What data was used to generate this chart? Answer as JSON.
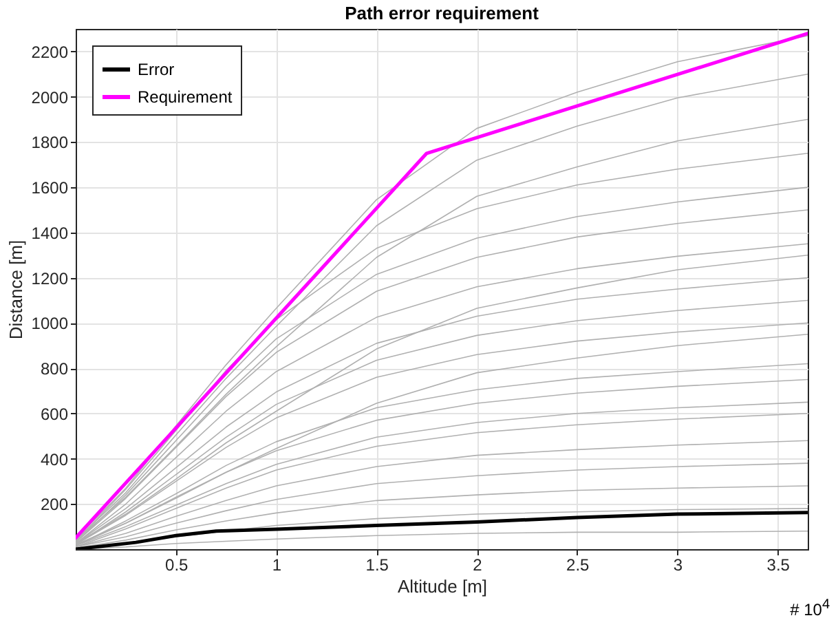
{
  "chart_data": {
    "type": "line",
    "title": "Path error requirement",
    "xlabel": "Altitude [m]",
    "ylabel": "Distance [m]",
    "annotations": [
      "# 10$^{4}$"
    ],
    "x": [
      0,
      0.25,
      0.5,
      0.75,
      1,
      1.5,
      2,
      2.5,
      3,
      3.65
    ],
    "xlim": [
      0,
      3.65
    ],
    "ylim": [
      0,
      2300
    ],
    "xticks": [
      0.5,
      1,
      1.5,
      2,
      2.5,
      3,
      3.5
    ],
    "yticks": [
      200,
      400,
      600,
      800,
      1000,
      1200,
      1400,
      1600,
      1800,
      2000,
      2200
    ],
    "grid": true,
    "legend": "top left",
    "line_style": "solid",
    "marker": "none",
    "series": [
      {
        "color": "#b0b0b0",
        "values": [
          45,
          270,
          545,
          815,
          1065,
          1545,
          1860,
          2020,
          2155,
          2270
        ]
      },
      {
        "color": "#b0b0b0",
        "values": [
          40,
          250,
          505,
          755,
          985,
          1430,
          1720,
          1870,
          1995,
          2100
        ]
      },
      {
        "color": "#b0b0b0",
        "values": [
          40,
          230,
          455,
          685,
          895,
          1290,
          1560,
          1690,
          1805,
          1900
        ]
      },
      {
        "color": "#b0b0b0",
        "values": [
          35,
          265,
          525,
          790,
          1015,
          1330,
          1505,
          1610,
          1680,
          1750
        ]
      },
      {
        "color": "#b0b0b0",
        "values": [
          30,
          240,
          480,
          720,
          930,
          1215,
          1375,
          1470,
          1535,
          1600
        ]
      },
      {
        "color": "#b0b0b0",
        "values": [
          30,
          225,
          450,
          675,
          870,
          1140,
          1290,
          1380,
          1440,
          1500
        ]
      },
      {
        "color": "#b0b0b0",
        "values": [
          25,
          200,
          405,
          610,
          785,
          1025,
          1160,
          1240,
          1295,
          1350
        ]
      },
      {
        "color": "#b0b0b0",
        "values": [
          25,
          155,
          310,
          470,
          610,
          885,
          1065,
          1155,
          1235,
          1300
        ]
      },
      {
        "color": "#b0b0b0",
        "values": [
          25,
          180,
          360,
          540,
          695,
          910,
          1030,
          1105,
          1150,
          1200
        ]
      },
      {
        "color": "#b0b0b0",
        "values": [
          20,
          165,
          330,
          495,
          640,
          835,
          945,
          1010,
          1055,
          1100
        ]
      },
      {
        "color": "#b0b0b0",
        "values": [
          20,
          150,
          300,
          450,
          580,
          760,
          860,
          920,
          960,
          1000
        ]
      },
      {
        "color": "#b0b0b0",
        "values": [
          20,
          115,
          230,
          340,
          445,
          645,
          780,
          845,
          900,
          950
        ]
      },
      {
        "color": "#b0b0b0",
        "values": [
          15,
          125,
          245,
          370,
          475,
          625,
          705,
          755,
          785,
          820
        ]
      },
      {
        "color": "#b0b0b0",
        "values": [
          15,
          115,
          225,
          340,
          435,
          570,
          645,
          690,
          720,
          750
        ]
      },
      {
        "color": "#b0b0b0",
        "values": [
          15,
          100,
          195,
          290,
          375,
          495,
          560,
          600,
          625,
          650
        ]
      },
      {
        "color": "#b0b0b0",
        "values": [
          10,
          90,
          180,
          270,
          350,
          455,
          515,
          550,
          575,
          600
        ]
      },
      {
        "color": "#b0b0b0",
        "values": [
          10,
          70,
          145,
          215,
          280,
          365,
          415,
          440,
          460,
          480
        ]
      },
      {
        "color": "#b0b0b0",
        "values": [
          10,
          55,
          115,
          170,
          220,
          290,
          325,
          350,
          365,
          380
        ]
      },
      {
        "color": "#b0b0b0",
        "values": [
          5,
          40,
          85,
          125,
          160,
          215,
          240,
          260,
          270,
          280
        ]
      },
      {
        "color": "#b0b0b0",
        "values": [
          5,
          25,
          55,
          80,
          105,
          135,
          155,
          165,
          175,
          180
        ]
      },
      {
        "color": "#b0b0b0",
        "values": [
          0,
          10,
          25,
          35,
          45,
          60,
          70,
          75,
          75,
          80
        ]
      },
      {
        "name": "Error",
        "color": "#000000",
        "x": [
          0,
          0.3,
          0.5,
          0.7,
          1,
          1.5,
          2,
          2.5,
          3,
          3.65
        ],
        "values": [
          0,
          30,
          60,
          80,
          88,
          105,
          120,
          140,
          155,
          162
        ]
      },
      {
        "name": "Requirement",
        "color": "#ff00ff",
        "x": [
          0,
          1.75,
          3.65
        ],
        "values": [
          50,
          1750,
          2280
        ]
      }
    ]
  }
}
